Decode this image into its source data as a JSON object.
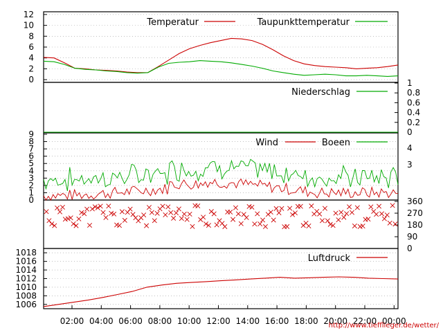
{
  "chart_data": [
    {
      "type": "line",
      "panel": "temperature",
      "x_unit": "time",
      "legend_placement": "top",
      "series": [
        {
          "name": "Temperatur",
          "color": "#cc0000",
          "points": [
            [
              0,
              4.1
            ],
            [
              1,
              4.0
            ],
            [
              2,
              3.1
            ],
            [
              3,
              2.1
            ],
            [
              4,
              2.0
            ],
            [
              5,
              1.8
            ],
            [
              6,
              1.7
            ],
            [
              7,
              1.6
            ],
            [
              8,
              1.4
            ],
            [
              9,
              1.3
            ],
            [
              10,
              1.3
            ],
            [
              11,
              2.4
            ],
            [
              12,
              3.6
            ],
            [
              13,
              4.8
            ],
            [
              14,
              5.7
            ],
            [
              15,
              6.3
            ],
            [
              16,
              6.8
            ],
            [
              17,
              7.2
            ],
            [
              18,
              7.6
            ],
            [
              19,
              7.5
            ],
            [
              20,
              7.2
            ],
            [
              21,
              6.5
            ],
            [
              22,
              5.5
            ],
            [
              23,
              4.4
            ],
            [
              24,
              3.5
            ],
            [
              25,
              2.9
            ],
            [
              26,
              2.6
            ],
            [
              27,
              2.4
            ],
            [
              28,
              2.3
            ],
            [
              29,
              2.2
            ],
            [
              30,
              2.0
            ],
            [
              31,
              2.1
            ],
            [
              32,
              2.2
            ],
            [
              33,
              2.4
            ],
            [
              34,
              2.7
            ]
          ]
        },
        {
          "name": "Taupunkttemperatur",
          "color": "#00aa00",
          "points": [
            [
              0,
              3.4
            ],
            [
              1,
              3.3
            ],
            [
              2,
              2.8
            ],
            [
              3,
              2.1
            ],
            [
              4,
              1.9
            ],
            [
              5,
              1.8
            ],
            [
              6,
              1.6
            ],
            [
              7,
              1.5
            ],
            [
              8,
              1.3
            ],
            [
              9,
              1.2
            ],
            [
              10,
              1.3
            ],
            [
              11,
              2.3
            ],
            [
              12,
              3.0
            ],
            [
              13,
              3.2
            ],
            [
              14,
              3.3
            ],
            [
              15,
              3.5
            ],
            [
              16,
              3.4
            ],
            [
              17,
              3.3
            ],
            [
              18,
              3.1
            ],
            [
              19,
              2.8
            ],
            [
              20,
              2.5
            ],
            [
              21,
              2.1
            ],
            [
              22,
              1.6
            ],
            [
              23,
              1.3
            ],
            [
              24,
              1.0
            ],
            [
              25,
              0.8
            ],
            [
              26,
              0.9
            ],
            [
              27,
              1.0
            ],
            [
              28,
              0.9
            ],
            [
              29,
              0.7
            ],
            [
              30,
              0.7
            ],
            [
              31,
              0.8
            ],
            [
              32,
              0.7
            ],
            [
              33,
              0.6
            ],
            [
              34,
              0.7
            ]
          ]
        }
      ],
      "yticks": [
        0,
        2,
        4,
        6,
        8,
        10,
        12
      ],
      "ylim": [
        -0.5,
        12.5
      ],
      "grid": true
    },
    {
      "type": "line",
      "panel": "precipitation",
      "legend_placement": "top-right",
      "series": [
        {
          "name": "Niederschlag",
          "color": "#00aa00",
          "points": [
            [
              0,
              0
            ],
            [
              34,
              0
            ]
          ]
        }
      ],
      "yticks_right": [
        "1",
        "0.8",
        "0.6",
        "0.4",
        "0.2",
        "0"
      ],
      "ylim": [
        0,
        1
      ]
    },
    {
      "type": "line",
      "panel": "wind",
      "legend_placement": "top",
      "series": [
        {
          "name": "Wind",
          "color": "#cc0000",
          "approx_range": [
            0,
            3.5
          ]
        },
        {
          "name": "Boeen",
          "color": "#00aa00",
          "approx_range": [
            0.5,
            6.5
          ]
        }
      ],
      "yticks_left": [
        0,
        1,
        2,
        3,
        4,
        5,
        6,
        7,
        8,
        9
      ],
      "yticks_right": [
        "3",
        "4"
      ],
      "ylim": [
        0,
        9
      ]
    },
    {
      "type": "scatter",
      "panel": "wind_direction",
      "series": [
        {
          "name": "",
          "color": "#cc0000",
          "marker": "x",
          "typical_values": [
            180,
            225,
            270,
            315
          ]
        }
      ],
      "yticks_right": [
        "360",
        "270",
        "180",
        "90",
        "0"
      ],
      "ylim": [
        0,
        360
      ]
    },
    {
      "type": "line",
      "panel": "pressure",
      "legend_placement": "top-right",
      "series": [
        {
          "name": "Luftdruck",
          "color": "#cc0000",
          "points": [
            [
              0,
              1005.5
            ],
            [
              2,
              1006.0
            ],
            [
              4,
              1006.5
            ],
            [
              6,
              1007.0
            ],
            [
              8,
              1007.6
            ],
            [
              10,
              1008.3
            ],
            [
              12,
              1009.0
            ],
            [
              14,
              1010.0
            ],
            [
              16,
              1010.5
            ],
            [
              18,
              1010.9
            ],
            [
              20,
              1011.1
            ],
            [
              22,
              1011.3
            ],
            [
              24,
              1011.5
            ],
            [
              26,
              1011.7
            ],
            [
              28,
              1011.9
            ],
            [
              30,
              1012.1
            ],
            [
              32,
              1012.3
            ],
            [
              34,
              1012.1
            ],
            [
              36,
              1012.2
            ],
            [
              38,
              1012.3
            ],
            [
              40,
              1012.4
            ],
            [
              42,
              1012.3
            ],
            [
              44,
              1012.1
            ],
            [
              46,
              1012.0
            ],
            [
              48,
              1011.9
            ]
          ]
        }
      ],
      "yticks": [
        1006,
        1008,
        1010,
        1012,
        1014,
        1016,
        1018
      ],
      "ylim": [
        1005,
        1019
      ],
      "grid": true
    }
  ],
  "x_axis": {
    "tick_labels": [
      "02:00",
      "04:00",
      "06:00",
      "08:00",
      "10:00",
      "12:00",
      "14:00",
      "16:00",
      "18:00",
      "20:00",
      "22:00",
      "00:00"
    ]
  },
  "footer": {
    "url": "http://www.tiefflieger.de/wetter/",
    "color": "#cc0000"
  }
}
